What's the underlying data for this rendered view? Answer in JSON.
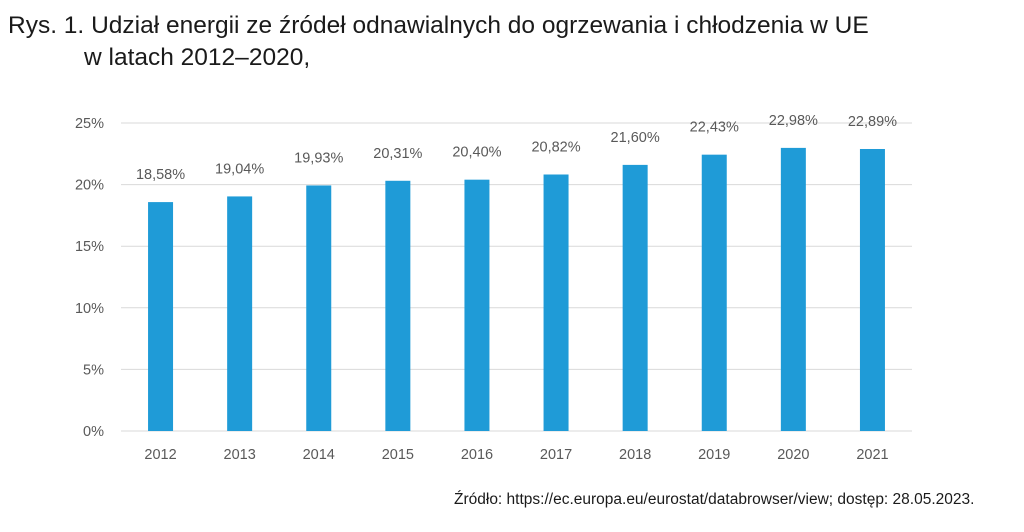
{
  "figure": {
    "title_prefix": "Rys. 1.",
    "title_line1": "Udział energii ze źródeł odnawialnych do ogrzewania i chłodzenia w UE",
    "title_line2": "w latach 2012–2020,",
    "source": "Źródło: https://ec.europa.eu/eurostat/databrowser/view; dostęp: 28.05.2023."
  },
  "chart_data": {
    "type": "bar",
    "title": "Rys. 1. Udział energii ze źródeł odnawialnych do ogrzewania i chłodzenia w UE w latach 2012–2020,",
    "xlabel": "",
    "ylabel": "",
    "categories": [
      "2012",
      "2013",
      "2014",
      "2015",
      "2016",
      "2017",
      "2018",
      "2019",
      "2020",
      "2021"
    ],
    "values": [
      18.58,
      19.04,
      19.93,
      20.31,
      20.4,
      20.82,
      21.6,
      22.43,
      22.98,
      22.89
    ],
    "data_labels": [
      "18,58%",
      "19,04%",
      "19,93%",
      "20,31%",
      "20,40%",
      "20,82%",
      "21,60%",
      "22,43%",
      "22,98%",
      "22,89%"
    ],
    "ylim": [
      0,
      25
    ],
    "yticks": [
      0,
      5,
      10,
      15,
      20,
      25
    ],
    "ytick_labels": [
      "0%",
      "5%",
      "10%",
      "15%",
      "20%",
      "25%"
    ],
    "grid": true,
    "legend": "none",
    "bar_color": "#1f9bd7",
    "grid_color": "#d9d9d9",
    "tick_label_color": "#595959"
  }
}
